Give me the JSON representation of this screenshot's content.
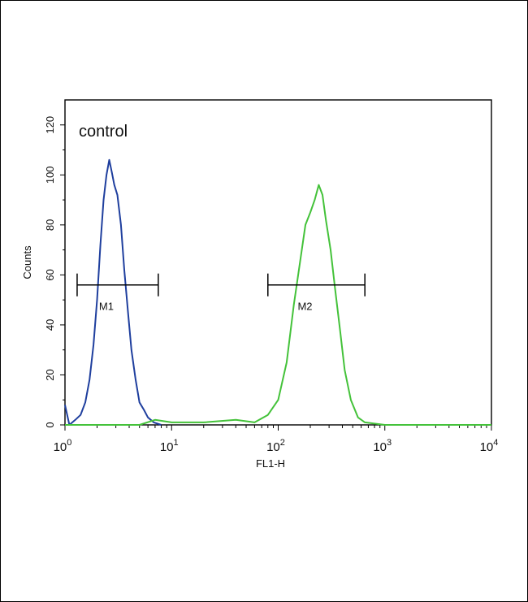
{
  "chart_data": {
    "type": "line",
    "title": "",
    "annotation": "control",
    "xlabel": "FL1-H",
    "ylabel": "Counts",
    "xscale": "log",
    "xlim": [
      1,
      10000
    ],
    "ylim": [
      0,
      130
    ],
    "x_ticks": [
      {
        "base": "10",
        "exp": "0"
      },
      {
        "base": "10",
        "exp": "1"
      },
      {
        "base": "10",
        "exp": "2"
      },
      {
        "base": "10",
        "exp": "3"
      },
      {
        "base": "10",
        "exp": "4"
      }
    ],
    "y_ticks": [
      "0",
      "20",
      "40",
      "60",
      "80",
      "100",
      "120"
    ],
    "y_tick_values": [
      0,
      20,
      40,
      60,
      80,
      100,
      120
    ],
    "grid": false,
    "legend": "none",
    "series": [
      {
        "color": "#1f3f9e",
        "x": [
          1.0,
          1.1,
          1.25,
          1.4,
          1.55,
          1.7,
          1.85,
          2.0,
          2.15,
          2.3,
          2.45,
          2.6,
          2.75,
          2.9,
          3.1,
          3.35,
          3.6,
          3.9,
          4.2,
          4.6,
          5.0,
          5.5,
          6.0,
          6.8,
          8.0
        ],
        "y": [
          8,
          0,
          2,
          4,
          9,
          18,
          32,
          50,
          72,
          90,
          100,
          106,
          101,
          96,
          92,
          80,
          62,
          45,
          30,
          18,
          9,
          6,
          3,
          1,
          0
        ]
      },
      {
        "color": "#44c23a",
        "x": [
          1.0,
          5.0,
          7.0,
          10.0,
          20.0,
          40.0,
          60.0,
          80.0,
          100.0,
          120.0,
          140.0,
          160.0,
          180.0,
          200.0,
          220.0,
          240.0,
          260.0,
          280.0,
          310.0,
          340.0,
          380.0,
          420.0,
          480.0,
          560.0,
          650.0,
          1000.0,
          3000.0,
          10000.0
        ],
        "y": [
          0,
          0,
          2,
          1,
          1,
          2,
          1,
          4,
          10,
          25,
          48,
          65,
          80,
          85,
          90,
          96,
          92,
          82,
          70,
          55,
          38,
          22,
          10,
          3,
          1,
          0,
          0,
          0
        ]
      }
    ],
    "markers": [
      {
        "label": "M1",
        "x_start": 1.3,
        "x_end": 7.5,
        "y": 56
      },
      {
        "label": "M2",
        "x_start": 80,
        "x_end": 650,
        "y": 56
      }
    ]
  }
}
